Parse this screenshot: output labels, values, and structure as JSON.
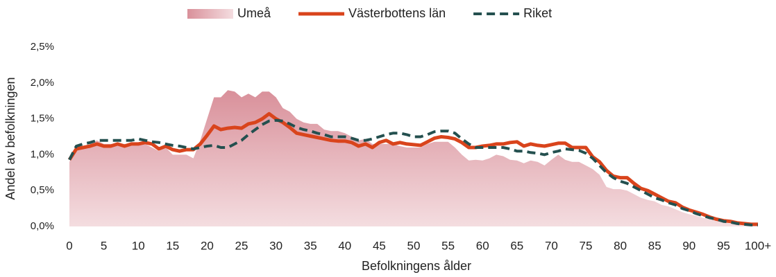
{
  "chart_data": {
    "type": "line",
    "x_label": "Befolkningens ålder",
    "y_label": "Andel av befolkningen",
    "legend": "top",
    "grid": false,
    "categories": [
      "0",
      null,
      null,
      null,
      null,
      "5",
      null,
      null,
      null,
      null,
      "10",
      null,
      null,
      null,
      null,
      "15",
      null,
      null,
      null,
      null,
      "20",
      null,
      null,
      null,
      null,
      "25",
      null,
      null,
      null,
      null,
      "30",
      null,
      null,
      null,
      null,
      "35",
      null,
      null,
      null,
      null,
      "40",
      null,
      null,
      null,
      null,
      "45",
      null,
      null,
      null,
      null,
      "50",
      null,
      null,
      null,
      null,
      "55",
      null,
      null,
      null,
      null,
      "60",
      null,
      null,
      null,
      null,
      "65",
      null,
      null,
      null,
      null,
      "70",
      null,
      null,
      null,
      null,
      "75",
      null,
      null,
      null,
      null,
      "80",
      null,
      null,
      null,
      null,
      "85",
      null,
      null,
      null,
      null,
      "90",
      null,
      null,
      null,
      null,
      "95",
      null,
      null,
      null,
      null,
      "100+"
    ],
    "ylim": [
      0,
      2.5
    ],
    "yticks": [
      {
        "value": 0,
        "label": "0,0%"
      },
      {
        "value": 0.5,
        "label": "0,5%"
      },
      {
        "value": 1,
        "label": "1,0%"
      },
      {
        "value": 1.5,
        "label": "1,5%"
      },
      {
        "value": 2,
        "label": "2,0%"
      },
      {
        "value": 2.5,
        "label": "2,5%"
      }
    ],
    "series": [
      {
        "name": "Umeå",
        "style": "area",
        "color": "#d98e98",
        "values": [
          0.9,
          1.1,
          1.1,
          1.15,
          1.2,
          1.15,
          1.15,
          1.15,
          1.15,
          1.15,
          1.15,
          1.15,
          1.1,
          1.05,
          1.1,
          1.0,
          1.0,
          1.0,
          0.95,
          1.2,
          1.5,
          1.8,
          1.8,
          1.9,
          1.88,
          1.8,
          1.85,
          1.8,
          1.88,
          1.88,
          1.8,
          1.65,
          1.6,
          1.5,
          1.45,
          1.43,
          1.43,
          1.35,
          1.33,
          1.33,
          1.3,
          1.25,
          1.2,
          1.22,
          1.15,
          1.15,
          1.15,
          1.15,
          1.12,
          1.1,
          1.1,
          1.1,
          1.15,
          1.18,
          1.18,
          1.18,
          1.1,
          1.0,
          0.92,
          0.93,
          0.92,
          0.95,
          1.0,
          0.98,
          0.93,
          0.92,
          0.88,
          0.92,
          0.9,
          0.85,
          0.93,
          1.0,
          0.93,
          0.9,
          0.9,
          0.85,
          0.8,
          0.72,
          0.55,
          0.52,
          0.52,
          0.5,
          0.45,
          0.4,
          0.37,
          0.35,
          0.3,
          0.28,
          0.24,
          0.2,
          0.17,
          0.15,
          0.12,
          0.1,
          0.08,
          0.06,
          0.05,
          0.04,
          0.03,
          0.02,
          0.02
        ]
      },
      {
        "name": "Västerbottens län",
        "style": "solid",
        "color": "#d9441c",
        "values": [
          0.93,
          1.08,
          1.1,
          1.12,
          1.15,
          1.12,
          1.12,
          1.15,
          1.12,
          1.15,
          1.15,
          1.17,
          1.15,
          1.08,
          1.12,
          1.07,
          1.05,
          1.07,
          1.07,
          1.15,
          1.27,
          1.4,
          1.35,
          1.37,
          1.38,
          1.37,
          1.43,
          1.45,
          1.5,
          1.57,
          1.5,
          1.45,
          1.38,
          1.3,
          1.28,
          1.26,
          1.24,
          1.22,
          1.2,
          1.19,
          1.19,
          1.17,
          1.12,
          1.15,
          1.1,
          1.17,
          1.2,
          1.15,
          1.17,
          1.15,
          1.14,
          1.13,
          1.18,
          1.23,
          1.25,
          1.24,
          1.22,
          1.17,
          1.1,
          1.1,
          1.12,
          1.13,
          1.15,
          1.15,
          1.17,
          1.18,
          1.12,
          1.15,
          1.13,
          1.12,
          1.14,
          1.16,
          1.16,
          1.1,
          1.1,
          1.1,
          0.97,
          0.9,
          0.78,
          0.7,
          0.68,
          0.68,
          0.6,
          0.53,
          0.5,
          0.45,
          0.4,
          0.35,
          0.33,
          0.27,
          0.23,
          0.2,
          0.17,
          0.13,
          0.1,
          0.08,
          0.07,
          0.05,
          0.04,
          0.03,
          0.03
        ]
      },
      {
        "name": "Riket",
        "style": "dashed",
        "color": "#24504f",
        "values": [
          0.93,
          1.12,
          1.15,
          1.17,
          1.2,
          1.2,
          1.2,
          1.2,
          1.2,
          1.2,
          1.22,
          1.2,
          1.18,
          1.17,
          1.15,
          1.13,
          1.12,
          1.1,
          1.08,
          1.1,
          1.12,
          1.13,
          1.1,
          1.1,
          1.15,
          1.2,
          1.28,
          1.35,
          1.42,
          1.47,
          1.48,
          1.47,
          1.43,
          1.38,
          1.35,
          1.33,
          1.3,
          1.28,
          1.25,
          1.25,
          1.25,
          1.23,
          1.2,
          1.2,
          1.22,
          1.25,
          1.28,
          1.3,
          1.3,
          1.28,
          1.25,
          1.25,
          1.28,
          1.32,
          1.33,
          1.33,
          1.3,
          1.22,
          1.15,
          1.1,
          1.1,
          1.1,
          1.1,
          1.1,
          1.08,
          1.05,
          1.05,
          1.03,
          1.02,
          1.0,
          1.03,
          1.05,
          1.08,
          1.07,
          1.06,
          1.02,
          0.95,
          0.85,
          0.75,
          0.68,
          0.63,
          0.6,
          0.55,
          0.5,
          0.45,
          0.4,
          0.37,
          0.33,
          0.3,
          0.25,
          0.22,
          0.18,
          0.15,
          0.12,
          0.1,
          0.07,
          0.06,
          0.04,
          0.03,
          0.02,
          0.02
        ]
      }
    ]
  }
}
